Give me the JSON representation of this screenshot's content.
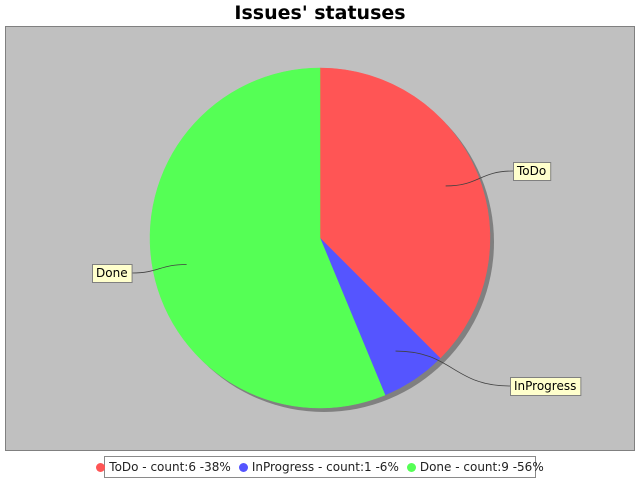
{
  "chart_data": {
    "type": "pie",
    "title": "Issues' statuses",
    "slices": [
      {
        "label": "ToDo",
        "value": 6,
        "percent": 38,
        "color": "#ff5555",
        "legend": "ToDo - count:6 -38%"
      },
      {
        "label": "InProgress",
        "value": 1,
        "percent": 6,
        "color": "#5555ff",
        "legend": "InProgress - count:1 -6%"
      },
      {
        "label": "Done",
        "value": 9,
        "percent": 56,
        "color": "#55ff55",
        "legend": "Done - count:9 -56%"
      }
    ],
    "start_angle_deg": 90,
    "direction": "clockwise",
    "plot_background": "#c0c0c0",
    "legend_position": "bottom"
  }
}
